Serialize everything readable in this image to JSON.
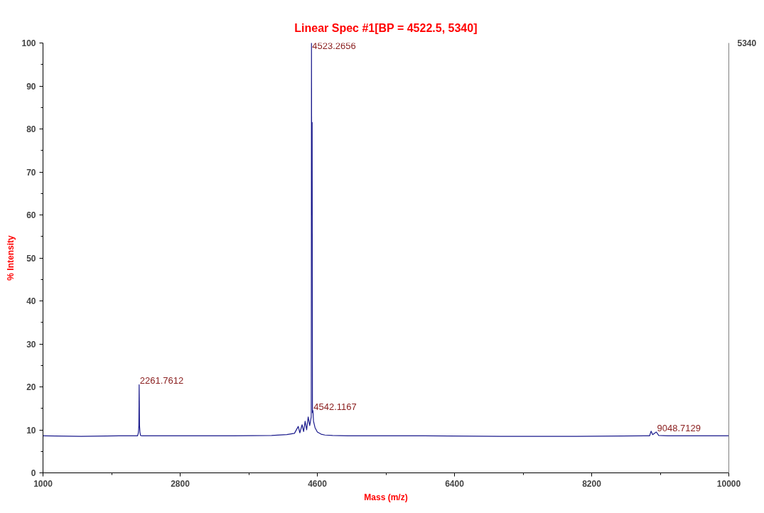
{
  "chart_data": {
    "type": "line",
    "title": "Linear Spec #1[BP = 4522.5, 5340]",
    "xlabel": "Mass (m/z)",
    "ylabel": "% Intensity",
    "series": [
      {
        "color": "#1a1a8c",
        "x": [
          1000,
          1500,
          2000,
          2240,
          2250,
          2255,
          2258,
          2261.76,
          2264,
          2267,
          2272,
          2280,
          2300,
          3000,
          3500,
          4000,
          4200,
          4300,
          4350,
          4370,
          4400,
          4420,
          4440,
          4460,
          4480,
          4500,
          4510,
          4520,
          4523.27,
          4527,
          4532,
          4536,
          4542.12,
          4550,
          4570,
          4600,
          4650,
          4700,
          4800,
          5000,
          6000,
          7000,
          8000,
          8900,
          8960,
          8980,
          9000,
          9048.71,
          9080,
          9200,
          9500,
          10000
        ],
        "values": [
          8.6,
          8.5,
          8.6,
          8.6,
          9.2,
          10,
          11,
          20.5,
          16.5,
          11,
          9.5,
          8.7,
          8.6,
          8.6,
          8.6,
          8.7,
          8.9,
          9.2,
          10.8,
          9.3,
          11.2,
          9.6,
          12,
          10,
          13,
          11,
          12,
          13,
          100,
          60,
          81.5,
          14,
          14.5,
          12,
          10.5,
          9.5,
          9,
          8.8,
          8.7,
          8.6,
          8.6,
          8.5,
          8.5,
          8.6,
          8.6,
          9.7,
          8.9,
          9.5,
          8.7,
          8.6,
          8.6,
          8.6
        ]
      }
    ],
    "annotations": [
      {
        "text": "4523.2656",
        "x": 4523.27,
        "y": 100
      },
      {
        "text": "2261.7612",
        "x": 2261.76,
        "y": 20.5
      },
      {
        "text": "4542.1167",
        "x": 4542.12,
        "y": 14.5
      },
      {
        "text": "9048.7129",
        "x": 9048.71,
        "y": 9.5
      },
      "5340"
    ],
    "xlim": [
      1000,
      10000
    ],
    "xticks": [
      1000,
      2800,
      4600,
      6400,
      8200,
      10000
    ],
    "ylim": [
      0,
      100
    ],
    "yticks": [
      0,
      10,
      20,
      30,
      40,
      50,
      60,
      70,
      80,
      90,
      100
    ],
    "grid": false,
    "marker": "none",
    "line_style": "solid"
  }
}
